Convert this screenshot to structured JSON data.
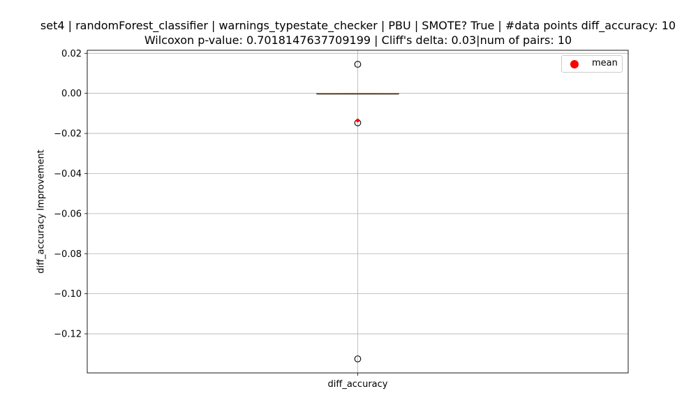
{
  "chart_data": {
    "type": "box",
    "title_line1": "set4 | randomForest_classifier | warnings_typestate_checker | PBU | SMOTE? True | #data points diff_accuracy: 10",
    "title_line2": "Wilcoxon p-value: 0.7018147637709199 | Cliff's delta: 0.03|num of pairs: 10",
    "xlabel": "",
    "ylabel": "diff_accuracy Improvement",
    "categories": [
      "diff_accuracy"
    ],
    "ylim": [
      -0.1395,
      0.0215
    ],
    "yticks": [
      0.02,
      0.0,
      -0.02,
      -0.04,
      -0.06,
      -0.08,
      -0.1,
      -0.12
    ],
    "ytick_labels": [
      "0.02",
      "0.00",
      "−0.02",
      "−0.04",
      "−0.06",
      "−0.08",
      "−0.10",
      "−0.12"
    ],
    "grid": true,
    "legend_position": "top-right",
    "box": {
      "q1": 0.0,
      "median": 0.0,
      "q3": 0.0,
      "whisker_low": 0.0,
      "whisker_high": 0.0,
      "mean": -0.0135,
      "outliers": [
        0.0145,
        -0.0147,
        -0.1325
      ]
    },
    "legend": [
      {
        "label": "mean",
        "color": "#ff0000"
      }
    ],
    "colors": {
      "median": "#ff7f0e",
      "mean": "#ff0000",
      "grid": "#b0b0b0",
      "outlier_edge": "#000000"
    }
  }
}
